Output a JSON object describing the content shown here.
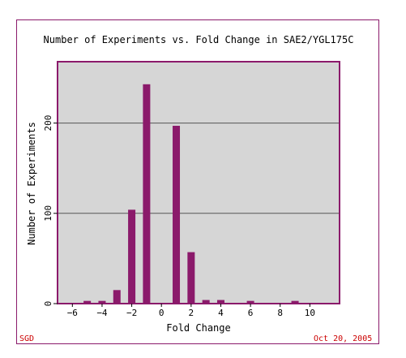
{
  "footer": {
    "left": "SGD",
    "right": "Oct 20, 2005"
  },
  "colors": {
    "bar": "#8b1a6b",
    "plot_bg": "#d6d6d6",
    "grid": "#555555",
    "frame": "#8b1a6b",
    "footer_text": "#cc0000"
  },
  "chart_data": {
    "type": "bar",
    "title": "Number of Experiments vs. Fold Change in SAE2/YGL175C",
    "xlabel": "Fold Change",
    "ylabel": "Number of Experiments",
    "xlim": [
      -7,
      12
    ],
    "ylim": [
      0,
      268
    ],
    "x_ticks": [
      -6,
      -4,
      -2,
      0,
      2,
      4,
      6,
      8,
      10
    ],
    "y_ticks": [
      0,
      100,
      200
    ],
    "grid": true,
    "x": [
      -5,
      -4,
      -3,
      -2,
      -1,
      1,
      2,
      3,
      4,
      6,
      9
    ],
    "values": [
      3,
      3,
      15,
      104,
      243,
      197,
      57,
      4,
      4,
      3,
      3
    ]
  }
}
